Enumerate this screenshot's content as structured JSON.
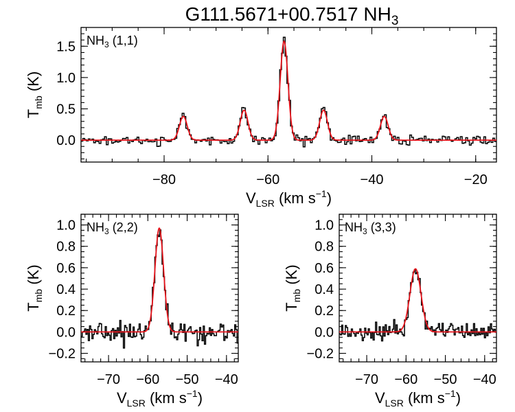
{
  "figure": {
    "title_main": "G111.5671+00.7517 NH",
    "title_sub": "3"
  },
  "colors": {
    "observed": "#000000",
    "fit": "#e8141c"
  },
  "chart_data": [
    {
      "type": "line",
      "panel_label_main": "NH",
      "panel_label_sub": "3",
      "panel_label_rest": " (1,1)",
      "xlabel_main": "V",
      "xlabel_sub": "LSR",
      "xlabel_rest": " (km s",
      "xlabel_sup": "−1",
      "xlabel_end": ")",
      "ylabel_main": "T",
      "ylabel_sub": "mb",
      "ylabel_rest": " (K)",
      "xlim": [
        -96,
        -16
      ],
      "ylim": [
        -0.35,
        1.8
      ],
      "xticks": [
        -80,
        -60,
        -40,
        -20
      ],
      "xtick_labels": [
        "−80",
        "−60",
        "−40",
        "−20"
      ],
      "yticks": [
        0.0,
        0.5,
        1.0,
        1.5
      ],
      "ytick_labels": [
        "0.0",
        "0.5",
        "1.0",
        "1.5"
      ],
      "x_minor_step": 5,
      "y_minor_step": 0.1,
      "noise_rms": 0.035,
      "components": [
        {
          "center": -76.3,
          "amplitude": 0.38,
          "width": 0.75
        },
        {
          "center": -64.6,
          "amplitude": 0.48,
          "width": 0.75
        },
        {
          "center": -56.9,
          "amplitude": 1.58,
          "width": 0.75
        },
        {
          "center": -49.3,
          "amplitude": 0.48,
          "width": 0.75
        },
        {
          "center": -37.6,
          "amplitude": 0.38,
          "width": 0.75
        }
      ]
    },
    {
      "type": "line",
      "panel_label_main": "NH",
      "panel_label_sub": "3",
      "panel_label_rest": " (2,2)",
      "xlabel_main": "V",
      "xlabel_sub": "LSR",
      "xlabel_rest": " (km s",
      "xlabel_sup": "−1",
      "xlabel_end": ")",
      "ylabel_main": "T",
      "ylabel_sub": "mb",
      "ylabel_rest": " (K)",
      "xlim": [
        -77,
        -37
      ],
      "ylim": [
        -0.28,
        1.1
      ],
      "xticks": [
        -70,
        -60,
        -50,
        -40
      ],
      "xtick_labels": [
        "−70",
        "−60",
        "−50",
        "−40"
      ],
      "yticks": [
        -0.2,
        0.0,
        0.2,
        0.4,
        0.6,
        0.8,
        1.0
      ],
      "ytick_labels": [
        "−0.2",
        "0.0",
        "0.2",
        "0.4",
        "0.6",
        "0.8",
        "1.0"
      ],
      "x_minor_step": 2,
      "y_minor_step": 0.05,
      "noise_rms": 0.05,
      "components": [
        {
          "center": -57.1,
          "amplitude": 0.97,
          "width": 1.1
        }
      ]
    },
    {
      "type": "line",
      "panel_label_main": "NH",
      "panel_label_sub": "3",
      "panel_label_rest": " (3,3)",
      "xlabel_main": "V",
      "xlabel_sub": "LSR",
      "xlabel_rest": " (km s",
      "xlabel_sup": "−1",
      "xlabel_end": ")",
      "ylabel_main": "T",
      "ylabel_sub": "mb",
      "ylabel_rest": " (K)",
      "xlim": [
        -77,
        -37
      ],
      "ylim": [
        -0.28,
        1.1
      ],
      "xticks": [
        -70,
        -60,
        -50,
        -40
      ],
      "xtick_labels": [
        "−70",
        "−60",
        "−50",
        "−40"
      ],
      "yticks": [
        -0.2,
        0.0,
        0.2,
        0.4,
        0.6,
        0.8,
        1.0
      ],
      "ytick_labels": [
        "−0.2",
        "0.0",
        "0.2",
        "0.4",
        "0.6",
        "0.8",
        "1.0"
      ],
      "x_minor_step": 2,
      "y_minor_step": 0.05,
      "noise_rms": 0.045,
      "components": [
        {
          "center": -57.6,
          "amplitude": 0.59,
          "width": 1.4
        }
      ]
    }
  ]
}
